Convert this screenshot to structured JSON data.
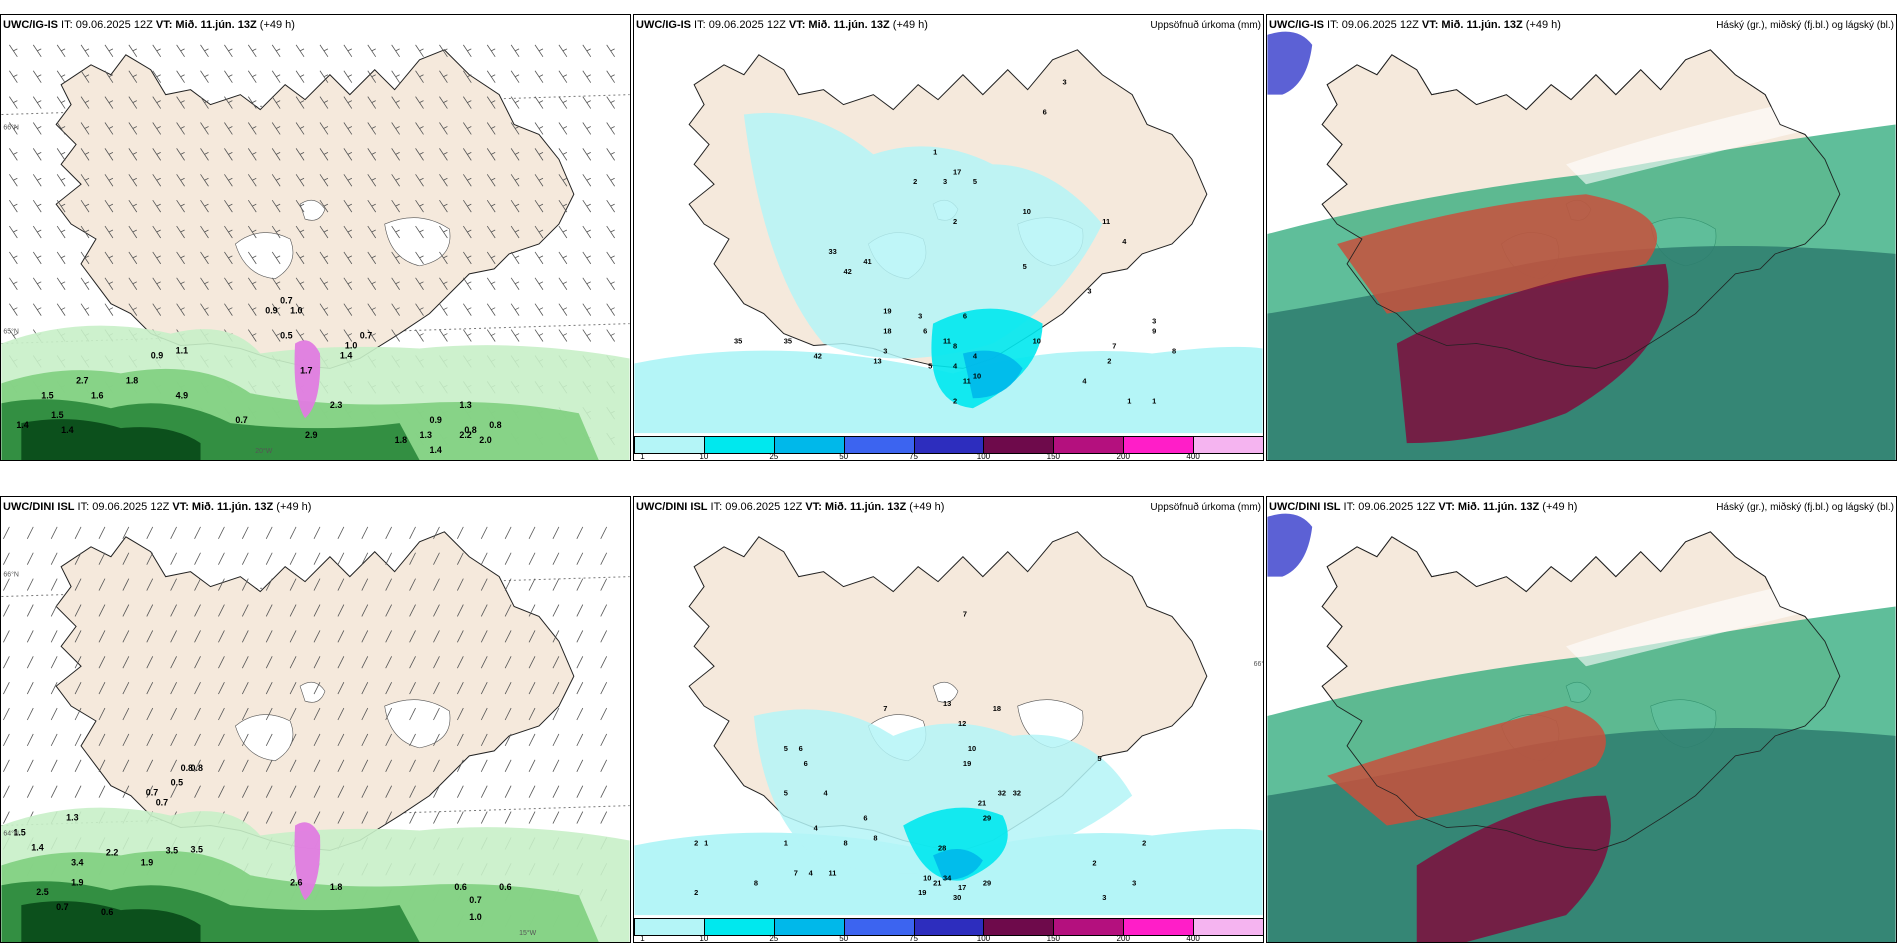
{
  "panels": [
    {
      "model": "UWC/IG-IS",
      "it_label": "IT:",
      "it": "09.06.2025 12Z",
      "vt_label": "VT:",
      "vt": "Mið. 11.jún. 13Z",
      "lead": "(+49 h)",
      "right_title": "",
      "kind": "wind"
    },
    {
      "model": "UWC/IG-IS",
      "it_label": "IT:",
      "it": "09.06.2025 12Z",
      "vt_label": "VT:",
      "vt": "Mið. 11.jún. 13Z",
      "lead": "(+49 h)",
      "right_title": "Uppsöfnuð úrkoma (mm)",
      "kind": "precip"
    },
    {
      "model": "UWC/IG-IS",
      "it_label": "IT:",
      "it": "09.06.2025 12Z",
      "vt_label": "VT:",
      "vt": "Mið. 11.jún. 13Z",
      "lead": "(+49 h)",
      "right_title": "Háský (gr.), miðský (fj.bl.) og lágský (bl.)",
      "kind": "cloud"
    },
    {
      "model": "UWC/DINI ISL",
      "it_label": "IT:",
      "it": "09.06.2025 12Z",
      "vt_label": "VT:",
      "vt": "Mið. 11.jún. 13Z",
      "lead": "(+49 h)",
      "right_title": "",
      "kind": "wind"
    },
    {
      "model": "UWC/DINI ISL",
      "it_label": "IT:",
      "it": "09.06.2025 12Z",
      "vt_label": "VT:",
      "vt": "Mið. 11.jún. 13Z",
      "lead": "(+49 h)",
      "right_title": "Uppsöfnuð úrkoma (mm)",
      "kind": "precip"
    },
    {
      "model": "UWC/DINI ISL",
      "it_label": "IT:",
      "it": "09.06.2025 12Z",
      "vt_label": "VT:",
      "vt": "Mið. 11.jún. 13Z",
      "lead": "(+49 h)",
      "right_title": "Háský (gr.), miðský (fj.bl.) og lágský (bl.)",
      "kind": "cloud"
    }
  ],
  "axis_labels": {
    "lat66": "66°N",
    "lat65": "65°N",
    "lat64": "64°N",
    "lon20": "20°W",
    "lon15": "15°W"
  },
  "precip_legend": {
    "ticks": [
      "1",
      "10",
      "25",
      "50",
      "75",
      "100",
      "150",
      "200",
      "400"
    ],
    "colors": [
      "#b4f5f7",
      "#00e8ee",
      "#00b8ea",
      "#3c64f0",
      "#2d2dbe",
      "#6e0a4b",
      "#b4107e",
      "#ff1ec8",
      "#f5b4f0"
    ]
  },
  "wind_values": {
    "top": [
      "0.7",
      "0.9",
      "1.0",
      "0.5",
      "1.0",
      "0.7",
      "1.4",
      "0.9",
      "1.1",
      "2.7",
      "1.5",
      "1.6",
      "4.9",
      "1.8",
      "1.5",
      "1.4",
      "1.4",
      "0.7",
      "2.9",
      "2.3",
      "1.3",
      "0.9",
      "0.8",
      "0.8",
      "1.8",
      "1.4",
      "2.0",
      "2.2",
      "1.3",
      "1.7"
    ],
    "bottom": [
      "0.8",
      "0.8",
      "0.5",
      "0.7",
      "0.7",
      "1.3",
      "1.5",
      "1.4",
      "3.4",
      "2.2",
      "1.9",
      "3.5",
      "3.5",
      "1.9",
      "2.5",
      "0.7",
      "0.6",
      "2.6",
      "1.8",
      "0.6",
      "0.7",
      "0.6",
      "1.0"
    ]
  },
  "precip_values": {
    "top": [
      "3",
      "6",
      "1",
      "17",
      "2",
      "3",
      "5",
      "10",
      "2",
      "5",
      "3",
      "6",
      "11",
      "8",
      "5",
      "4",
      "10",
      "11",
      "2",
      "6",
      "4",
      "3",
      "13",
      "18",
      "35",
      "35",
      "42",
      "33",
      "42",
      "41",
      "19",
      "10",
      "4",
      "7",
      "9",
      "8",
      "1",
      "2",
      "4",
      "11",
      "3",
      "3",
      "1"
    ],
    "bottom": [
      "2",
      "1",
      "1",
      "7",
      "8",
      "4",
      "4",
      "6",
      "5",
      "6",
      "7",
      "13",
      "12",
      "10",
      "18",
      "19",
      "21",
      "28",
      "32",
      "29",
      "32",
      "34",
      "21",
      "17",
      "29",
      "30",
      "19",
      "10",
      "11",
      "4",
      "2",
      "8",
      "7",
      "8",
      "6",
      "5",
      "5",
      "2",
      "3",
      "3",
      "2"
    ]
  },
  "colors": {
    "land": "#f5e9dc",
    "sea": "#ffffff",
    "precip_light": "#b4f5f7",
    "precip_mid": "#00e8ee",
    "precip_deep": "#00b8ea",
    "wind_pale": "#c8f0c8",
    "wind_mid": "#7fcf7f",
    "wind_dark": "#2e8b3e",
    "wind_deep": "#0b4d1a",
    "wind_magenta": "#e07be0",
    "cloud_high": "#2e7d6f",
    "cloud_mid": "#2aa878",
    "cloud_low": "#c8503c",
    "cloud_deep": "#7a1440",
    "cloud_blue": "#4a50d0"
  }
}
